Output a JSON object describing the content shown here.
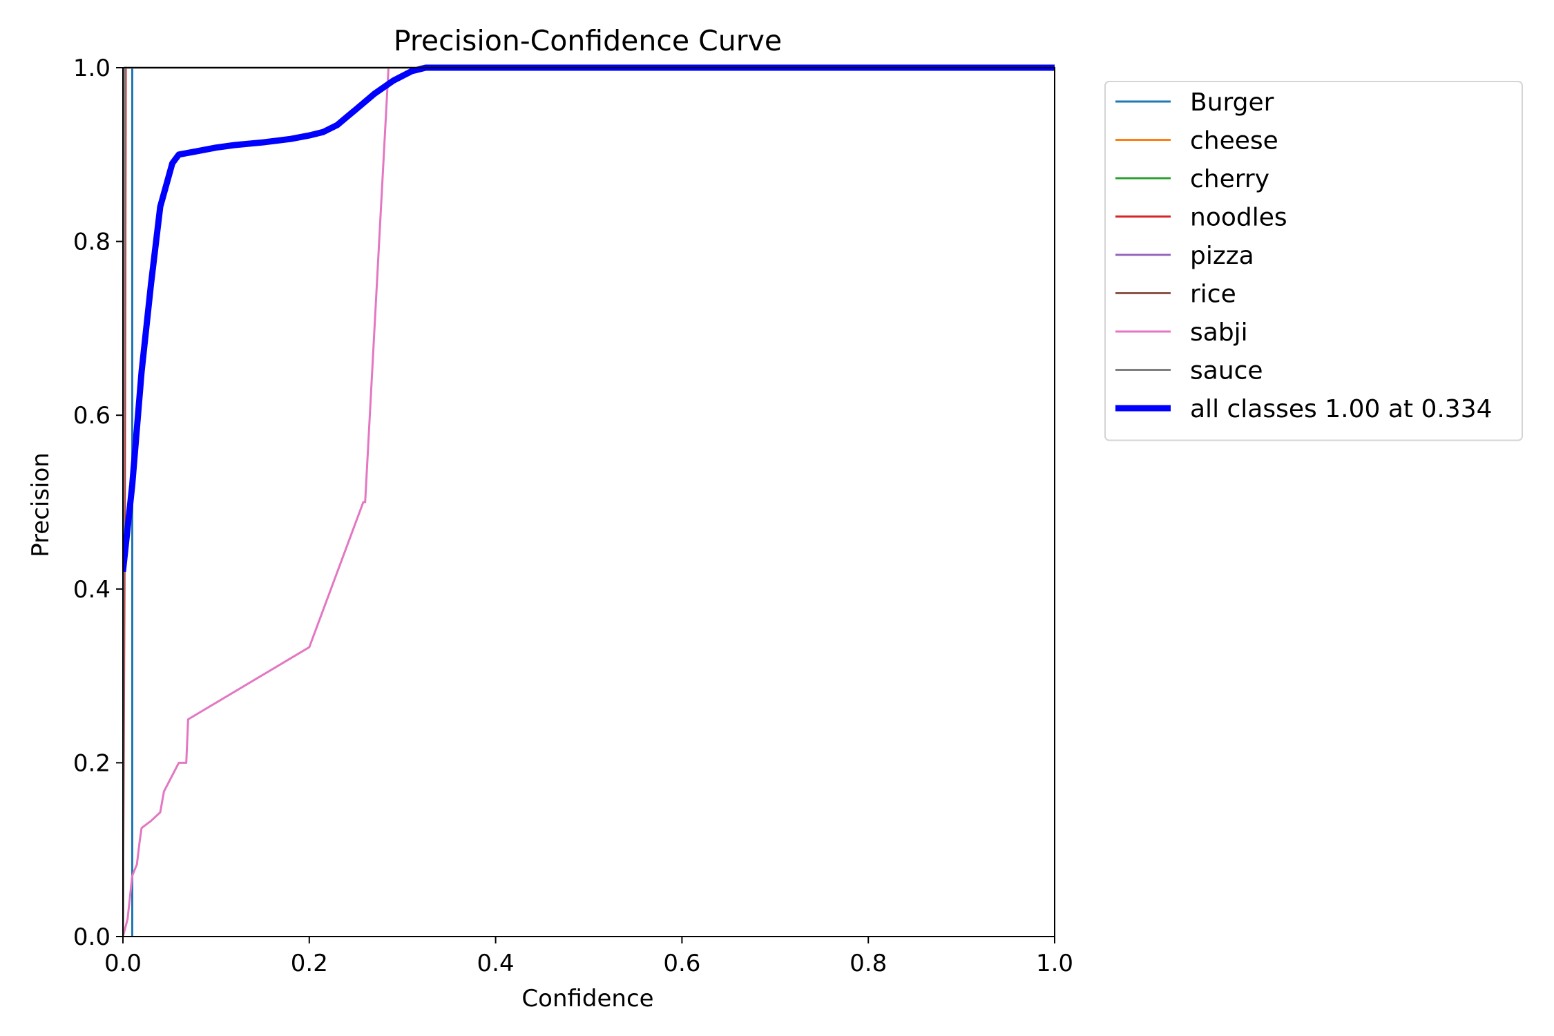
{
  "chart_data": {
    "type": "line",
    "title": "Precision-Confidence Curve",
    "xlabel": "Confidence",
    "ylabel": "Precision",
    "xlim": [
      0,
      1
    ],
    "ylim": [
      0,
      1
    ],
    "xticks": [
      "0.0",
      "0.2",
      "0.4",
      "0.6",
      "0.8",
      "1.0"
    ],
    "yticks": [
      "0.0",
      "0.2",
      "0.4",
      "0.6",
      "0.8",
      "1.0"
    ],
    "grid": false,
    "legend_position": "outside-top-right",
    "series": [
      {
        "name": "Burger",
        "color": "#1f77b4",
        "width": 3,
        "x": [
          0.01,
          0.01,
          0.01,
          0.011,
          0.011,
          1.0
        ],
        "y": [
          0.0,
          0.5,
          1.0,
          1.0,
          1.0,
          1.0
        ]
      },
      {
        "name": "cheese",
        "color": "#ff7f0e",
        "width": 3,
        "x": [
          0.0,
          0.001,
          0.002,
          1.0
        ],
        "y": [
          0.0,
          0.6,
          1.0,
          1.0
        ]
      },
      {
        "name": "cherry",
        "color": "#2ca02c",
        "width": 3,
        "x": [
          0.0,
          0.001,
          0.002,
          1.0
        ],
        "y": [
          0.0,
          0.7,
          1.0,
          1.0
        ]
      },
      {
        "name": "noodles",
        "color": "#d62728",
        "width": 3,
        "x": [
          0.0,
          0.002,
          0.003,
          1.0
        ],
        "y": [
          0.0,
          0.5,
          1.0,
          1.0
        ]
      },
      {
        "name": "pizza",
        "color": "#9467bd",
        "width": 3,
        "x": [
          0.0,
          0.001,
          0.002,
          1.0
        ],
        "y": [
          0.0,
          0.5,
          1.0,
          1.0
        ]
      },
      {
        "name": "rice",
        "color": "#8c564b",
        "width": 3,
        "x": [
          0.0,
          0.001,
          0.002,
          1.0
        ],
        "y": [
          0.0,
          0.8,
          1.0,
          1.0
        ]
      },
      {
        "name": "sabji",
        "color": "#e377c2",
        "width": 3,
        "x": [
          0.0,
          0.005,
          0.01,
          0.015,
          0.018,
          0.02,
          0.03,
          0.04,
          0.044,
          0.06,
          0.068,
          0.07,
          0.2,
          0.258,
          0.26,
          0.285,
          0.29,
          0.5,
          1.0
        ],
        "y": [
          0.0,
          0.02,
          0.07,
          0.083,
          0.11,
          0.125,
          0.133,
          0.143,
          0.167,
          0.2,
          0.2,
          0.25,
          0.333,
          0.5,
          0.5,
          1.0,
          1.0,
          1.0,
          1.0
        ]
      },
      {
        "name": "sauce",
        "color": "#7f7f7f",
        "width": 3,
        "x": [
          0.0,
          0.001,
          0.002,
          1.0
        ],
        "y": [
          0.0,
          0.5,
          1.0,
          1.0
        ]
      },
      {
        "name": "all classes 1.00 at 0.334",
        "color": "#0000ff",
        "width": 9,
        "x": [
          0.0,
          0.01,
          0.02,
          0.03,
          0.04,
          0.053,
          0.06,
          0.08,
          0.1,
          0.12,
          0.15,
          0.18,
          0.2,
          0.215,
          0.23,
          0.25,
          0.27,
          0.29,
          0.31,
          0.325,
          0.334,
          0.4,
          0.6,
          0.8,
          1.0
        ],
        "y": [
          0.42,
          0.52,
          0.65,
          0.75,
          0.84,
          0.89,
          0.9,
          0.904,
          0.908,
          0.911,
          0.914,
          0.918,
          0.922,
          0.926,
          0.934,
          0.952,
          0.97,
          0.985,
          0.996,
          1.0,
          1.0,
          1.0,
          1.0,
          1.0,
          1.0
        ]
      }
    ]
  }
}
